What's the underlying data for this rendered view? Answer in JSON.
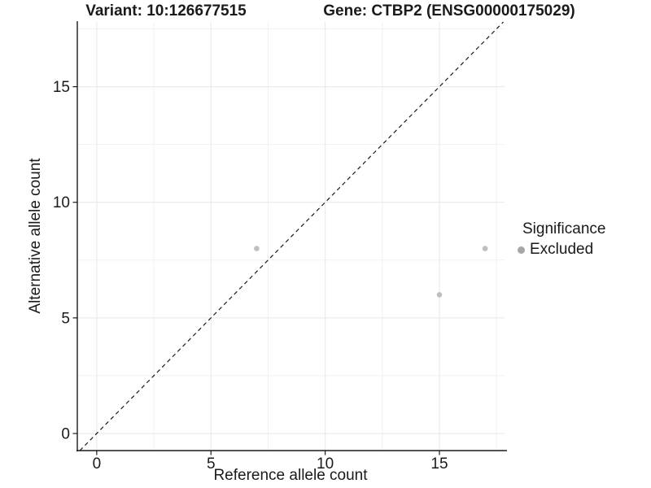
{
  "chart_data": {
    "type": "scatter",
    "title_left": "Variant: 10:126677515",
    "title_right": "Gene: CTBP2 (ENSG00000175029)",
    "xlabel": "Reference allele count",
    "ylabel": "Alternative allele count",
    "xlim": [
      -0.85,
      17.85
    ],
    "ylim": [
      -0.74,
      17.8
    ],
    "x_ticks": [
      0,
      5,
      10,
      15
    ],
    "y_ticks": [
      0,
      5,
      10,
      15
    ],
    "x_minor": [
      2.5,
      7.5,
      12.5,
      17.5
    ],
    "y_minor": [
      2.5,
      7.5,
      12.5,
      17.5
    ],
    "grid": {
      "major_color": "#e7e7e7",
      "minor_color": "#f1f1f1",
      "grid_on": true
    },
    "axis_color": "#1a1a1a",
    "text_color": "#1a1a1a",
    "identity_line": {
      "style": "dashed",
      "slope": 1,
      "intercept": 0,
      "color": "#1a1a1a"
    },
    "series": [
      {
        "name": "Excluded",
        "point_color": "#bfbfbf",
        "points": [
          {
            "x": 7,
            "y": 8
          },
          {
            "x": 15,
            "y": 6
          },
          {
            "x": 17,
            "y": 8
          }
        ]
      }
    ],
    "legend": {
      "position": "right",
      "title": "Significance",
      "entries": [
        {
          "label": "Excluded",
          "color": "#a6a6a6"
        }
      ]
    }
  }
}
